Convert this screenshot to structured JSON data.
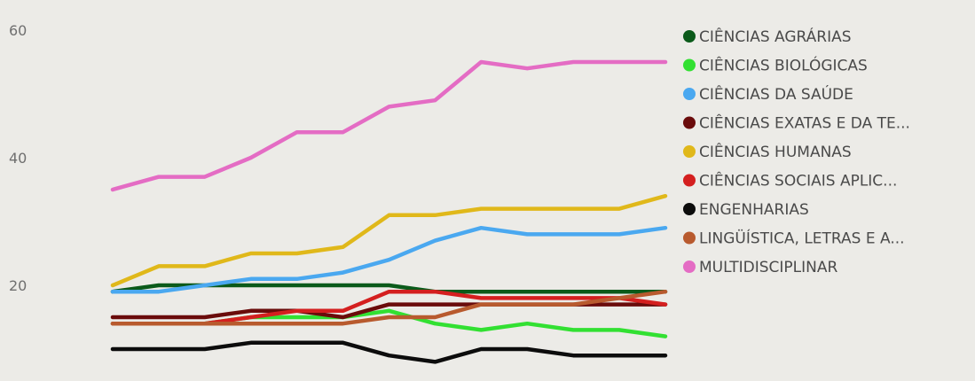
{
  "chart_data": {
    "type": "line",
    "title": "",
    "xlabel": "",
    "ylabel": "",
    "ylim": [
      0,
      60
    ],
    "yticks": [
      20,
      40,
      60
    ],
    "x": [
      1,
      2,
      3,
      4,
      5,
      6,
      7,
      8,
      9,
      10,
      11,
      12,
      13
    ],
    "legend_position": "right",
    "grid": false,
    "series": [
      {
        "name": "CIÊNCIAS AGRÁRIAS",
        "color": "#0b5a1a",
        "values": [
          19,
          20,
          20,
          20,
          20,
          20,
          20,
          19,
          19,
          19,
          19,
          19,
          19
        ]
      },
      {
        "name": "CIÊNCIAS BIOLÓGICAS",
        "color": "#32e032",
        "values": [
          14,
          14,
          14,
          15,
          15,
          15,
          16,
          14,
          13,
          14,
          13,
          13,
          12
        ]
      },
      {
        "name": "CIÊNCIAS DA SAÚDE",
        "color": "#4aa8f0",
        "values": [
          19,
          19,
          20,
          21,
          21,
          22,
          24,
          27,
          29,
          28,
          28,
          28,
          29
        ]
      },
      {
        "name": "CIÊNCIAS EXATAS E DA TE...",
        "color": "#6a0b0b",
        "values": [
          15,
          15,
          15,
          16,
          16,
          15,
          17,
          17,
          17,
          17,
          17,
          17,
          17
        ]
      },
      {
        "name": "CIÊNCIAS HUMANAS",
        "color": "#e0b81a",
        "values": [
          20,
          23,
          23,
          25,
          25,
          26,
          31,
          31,
          32,
          32,
          32,
          32,
          34
        ]
      },
      {
        "name": "CIÊNCIAS SOCIAIS APLIC...",
        "color": "#d41f1f",
        "values": [
          14,
          14,
          14,
          15,
          16,
          16,
          19,
          19,
          18,
          18,
          18,
          18,
          17
        ]
      },
      {
        "name": "ENGENHARIAS",
        "color": "#0c0c0c",
        "values": [
          10,
          10,
          10,
          11,
          11,
          11,
          9,
          8,
          10,
          10,
          9,
          9,
          9
        ]
      },
      {
        "name": "LINGÜÍSTICA, LETRAS E A...",
        "color": "#b85a2e",
        "values": [
          14,
          14,
          14,
          14,
          14,
          14,
          15,
          15,
          17,
          17,
          17,
          18,
          19
        ]
      },
      {
        "name": "MULTIDISCIPLINAR",
        "color": "#e46cc4",
        "values": [
          35,
          37,
          37,
          40,
          44,
          44,
          48,
          49,
          55,
          54,
          55,
          55,
          55
        ]
      }
    ]
  }
}
